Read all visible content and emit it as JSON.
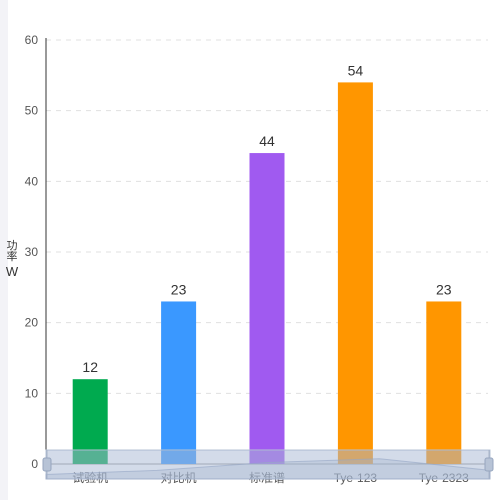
{
  "chart_data": {
    "type": "bar",
    "categories": [
      "试验机",
      "对比机",
      "标准谱",
      "Tye-123",
      "Tye-2323"
    ],
    "values": [
      12,
      23,
      44,
      54,
      23
    ],
    "colors": [
      "#00aa4f",
      "#3a98ff",
      "#a05af0",
      "#ff9600",
      "#ff9600"
    ],
    "ylabel": "功率",
    "yunit": "W",
    "ylim": [
      0,
      60
    ],
    "yticks": [
      0,
      10,
      20,
      30,
      40,
      50,
      60
    ],
    "grid": true,
    "data_labels": true,
    "datazoom": {
      "visible": true,
      "range": [
        0,
        100
      ]
    }
  }
}
